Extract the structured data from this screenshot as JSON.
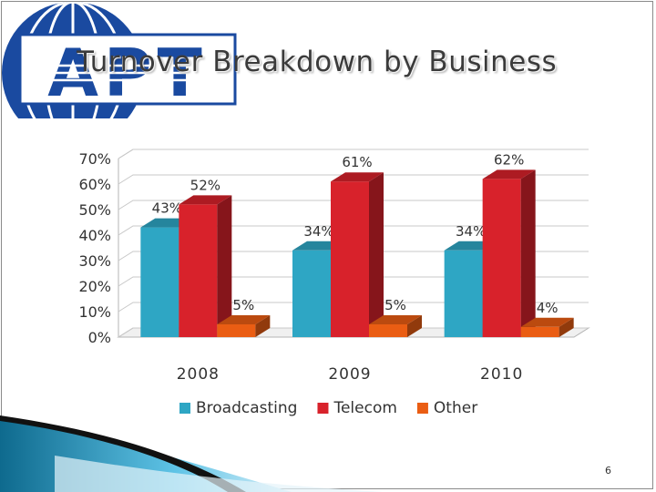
{
  "slide": {
    "title": "Turnover Breakdown by Business",
    "page_number": "6",
    "logo": {
      "text": "APT",
      "colors": {
        "blue": "#1a4aa0",
        "white": "#ffffff"
      }
    }
  },
  "chart_data": {
    "type": "bar",
    "title": "",
    "xlabel": "",
    "ylabel": "",
    "categories": [
      "2008",
      "2009",
      "2010"
    ],
    "series": [
      {
        "name": "Broadcasting",
        "values": [
          43,
          34,
          34
        ],
        "labels": [
          "43%",
          "34%",
          "34%"
        ],
        "color": "#2ea6c4"
      },
      {
        "name": "Telecom",
        "values": [
          52,
          61,
          62
        ],
        "labels": [
          "52%",
          "61%",
          "62%"
        ],
        "color": "#d8222b"
      },
      {
        "name": "Other",
        "values": [
          5,
          5,
          4
        ],
        "labels": [
          "5%",
          "5%",
          "4%"
        ],
        "color": "#ea5d13"
      }
    ],
    "ylim": [
      0,
      70
    ],
    "yticks": [
      "0%",
      "10%",
      "20%",
      "30%",
      "40%",
      "50%",
      "60%",
      "70%"
    ],
    "grid": true,
    "legend": "bottom",
    "style": "3d-clustered-column"
  }
}
